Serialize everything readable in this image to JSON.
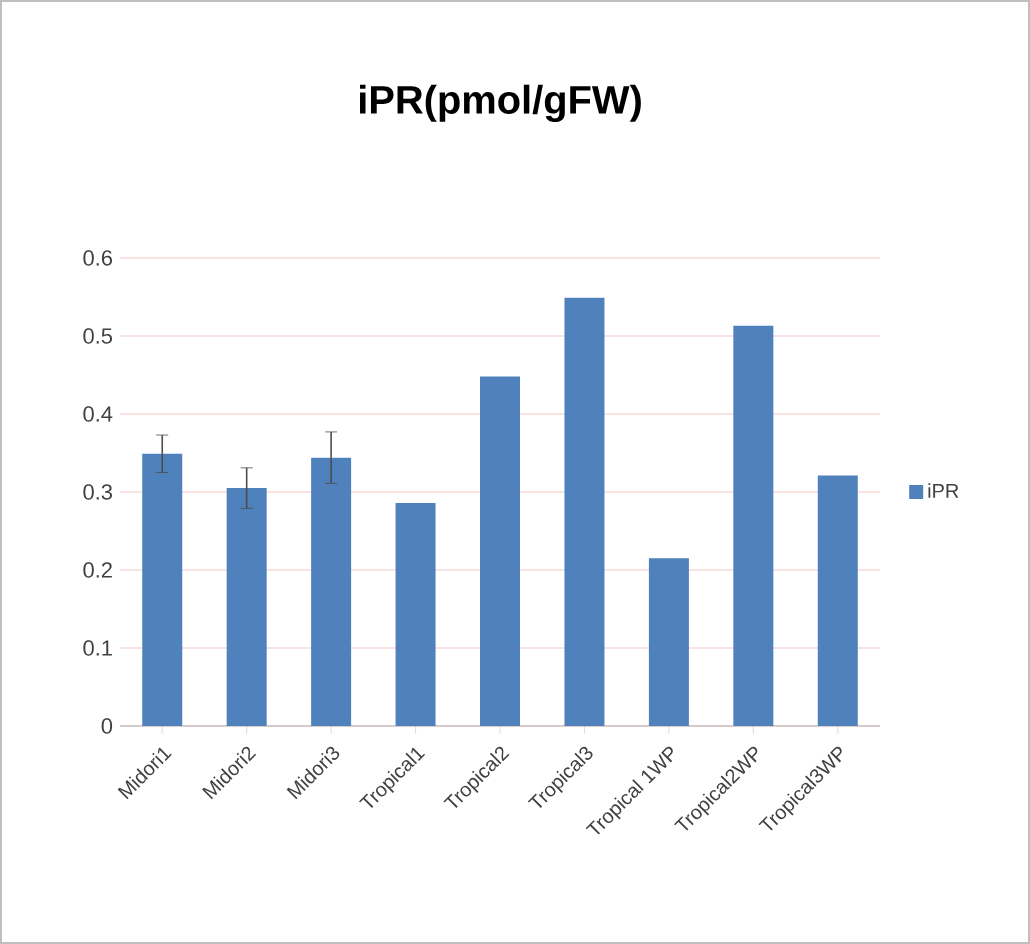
{
  "chart_data": {
    "type": "bar",
    "title": "iPR(pmol/gFW)",
    "categories": [
      "Midori1",
      "Midori2",
      "Midori3",
      "Tropical1",
      "Tropical2",
      "Tropical3",
      "Tropical 1WP",
      "Tropical2WP",
      "Tropical3WP"
    ],
    "series": [
      {
        "name": "iPR",
        "color": "#4f81bd",
        "values": [
          0.349,
          0.305,
          0.344,
          0.286,
          0.448,
          0.549,
          0.215,
          0.513,
          0.321
        ],
        "errors": [
          0.024,
          0.026,
          0.033,
          null,
          null,
          null,
          null,
          null,
          null
        ]
      }
    ],
    "ylim": [
      0,
      0.6
    ],
    "yticks": [
      0,
      0.1,
      0.2,
      0.3,
      0.4,
      0.5,
      0.6
    ],
    "grid": "y",
    "legend": "right"
  }
}
